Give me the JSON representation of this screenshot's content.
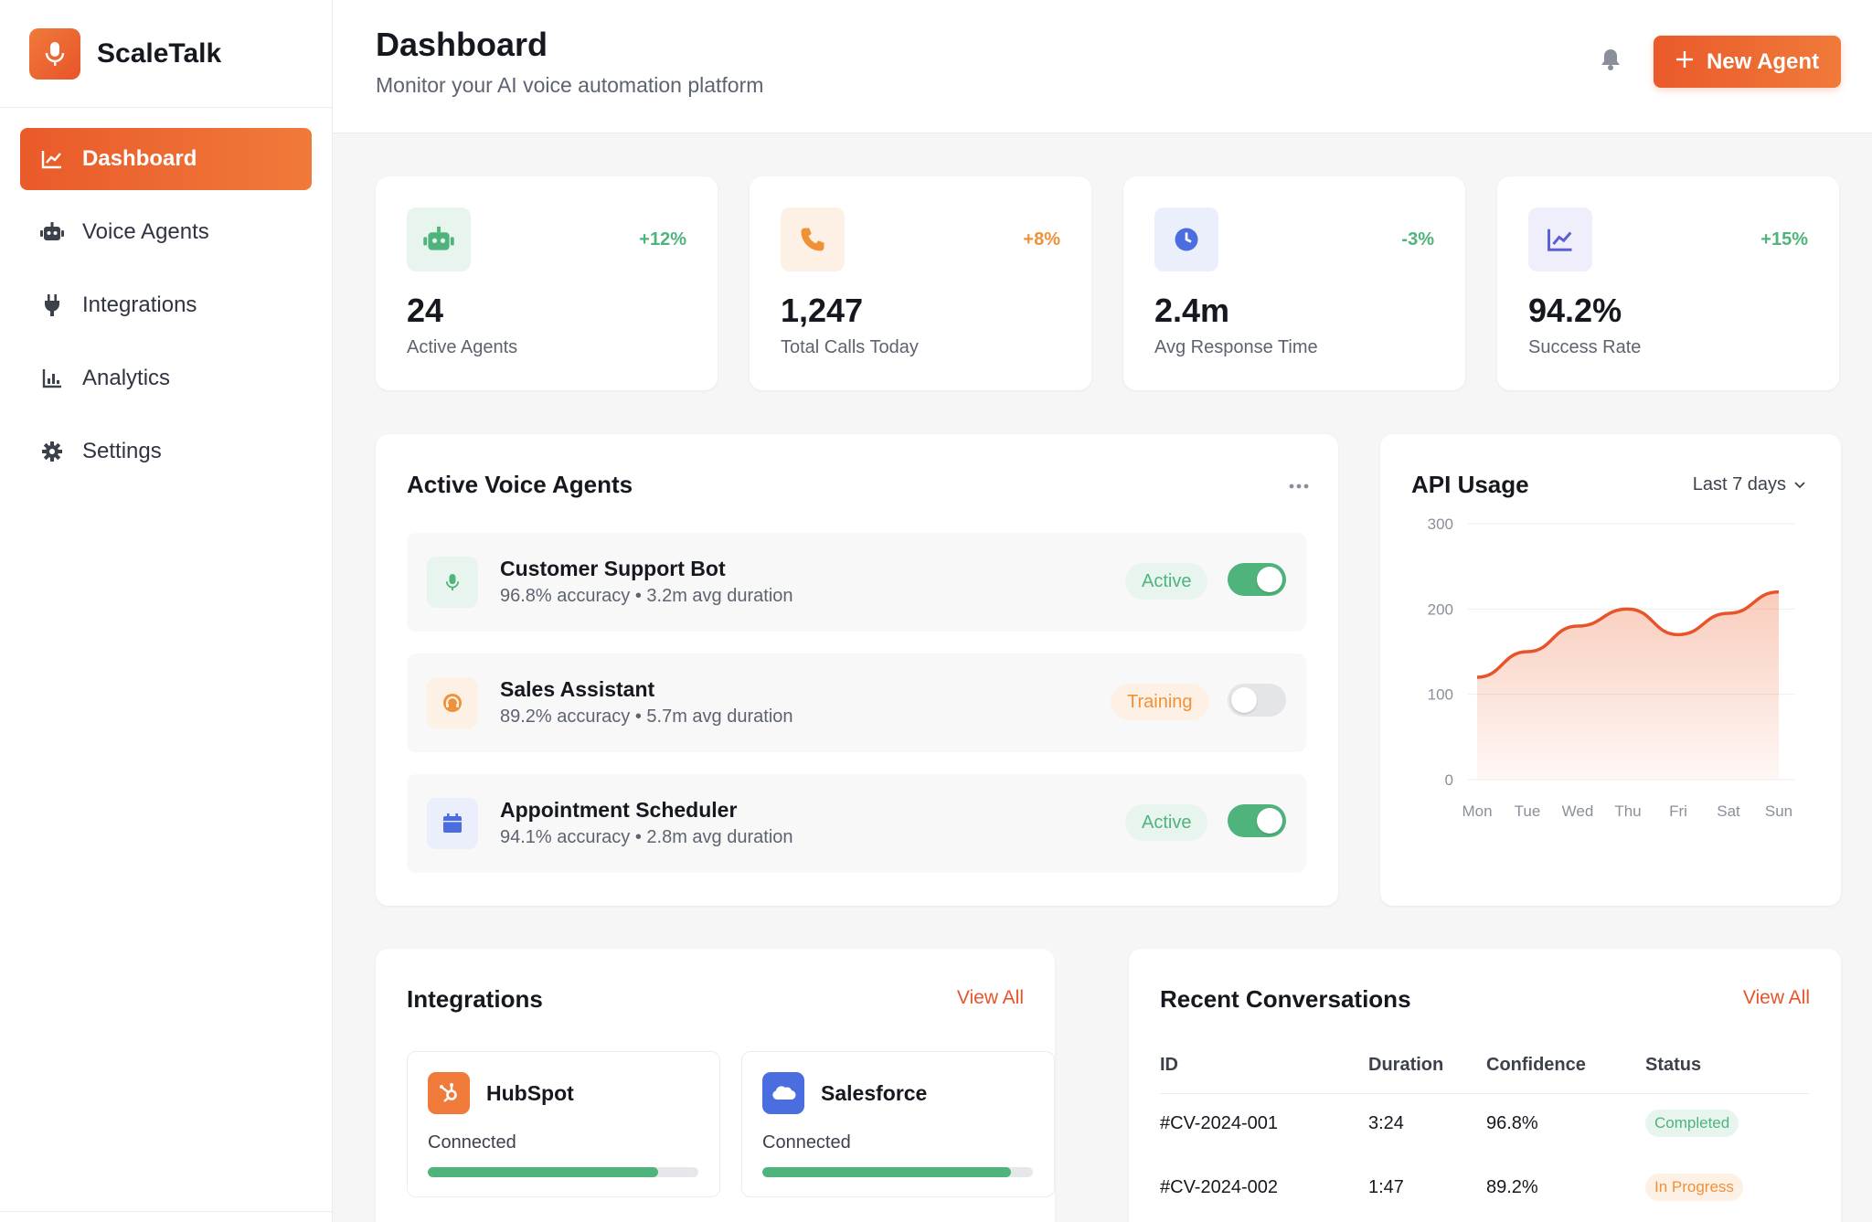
{
  "app": {
    "name": "ScaleTalk"
  },
  "sidebar": {
    "items": [
      {
        "label": "Dashboard",
        "icon": "chart-line-icon",
        "active": true
      },
      {
        "label": "Voice Agents",
        "icon": "robot-icon"
      },
      {
        "label": "Integrations",
        "icon": "plug-icon"
      },
      {
        "label": "Analytics",
        "icon": "bar-chart-icon"
      },
      {
        "label": "Settings",
        "icon": "gear-icon"
      }
    ]
  },
  "header": {
    "title": "Dashboard",
    "subtitle": "Monitor your AI voice automation platform",
    "new_agent_label": "New Agent"
  },
  "stats": [
    {
      "value": "24",
      "label": "Active Agents",
      "delta": "+12%",
      "delta_color": "#4fb37c",
      "icon": "robot-icon"
    },
    {
      "value": "1,247",
      "label": "Total Calls Today",
      "delta": "+8%",
      "delta_color": "#f0913a",
      "icon": "phone-icon"
    },
    {
      "value": "2.4m",
      "label": "Avg Response Time",
      "delta": "-3%",
      "delta_color": "#4fb37c",
      "icon": "clock-icon"
    },
    {
      "value": "94.2%",
      "label": "Success Rate",
      "delta": "+15%",
      "delta_color": "#4fb37c",
      "icon": "trend-icon"
    }
  ],
  "agents_panel": {
    "title": "Active Voice Agents",
    "agents": [
      {
        "name": "Customer Support Bot",
        "meta": "96.8% accuracy • 3.2m avg duration",
        "status": "Active",
        "enabled": true,
        "icon": "microphone-icon"
      },
      {
        "name": "Sales Assistant",
        "meta": "89.2% accuracy • 5.7m avg duration",
        "status": "Training",
        "enabled": false,
        "icon": "headset-icon"
      },
      {
        "name": "Appointment Scheduler",
        "meta": "94.1% accuracy • 2.8m avg duration",
        "status": "Active",
        "enabled": true,
        "icon": "calendar-icon"
      }
    ]
  },
  "api_usage": {
    "title": "API Usage",
    "range": "Last 7 days"
  },
  "chart_data": {
    "type": "area",
    "title": "API Usage",
    "categories": [
      "Mon",
      "Tue",
      "Wed",
      "Thu",
      "Fri",
      "Sat",
      "Sun"
    ],
    "values": [
      120,
      150,
      180,
      200,
      170,
      195,
      220
    ],
    "ylim": [
      0,
      300
    ],
    "yticks": [
      0,
      100,
      200,
      300
    ],
    "grid": true,
    "color": "#e8542a"
  },
  "integrations": {
    "title": "Integrations",
    "view_all": "View All",
    "items": [
      {
        "name": "HubSpot",
        "status": "Connected",
        "progress": 0.85,
        "color": "#f07a3a",
        "icon": "hubspot-icon"
      },
      {
        "name": "Salesforce",
        "status": "Connected",
        "progress": 0.92,
        "color": "#4a6ee0",
        "icon": "salesforce-icon"
      }
    ]
  },
  "conversations": {
    "title": "Recent Conversations",
    "view_all": "View All",
    "columns": [
      "ID",
      "Duration",
      "Confidence",
      "Status"
    ],
    "rows": [
      {
        "id": "#CV-2024-001",
        "duration": "3:24",
        "confidence": "96.8%",
        "status": "Completed"
      },
      {
        "id": "#CV-2024-002",
        "duration": "1:47",
        "confidence": "89.2%",
        "status": "In Progress"
      }
    ]
  }
}
